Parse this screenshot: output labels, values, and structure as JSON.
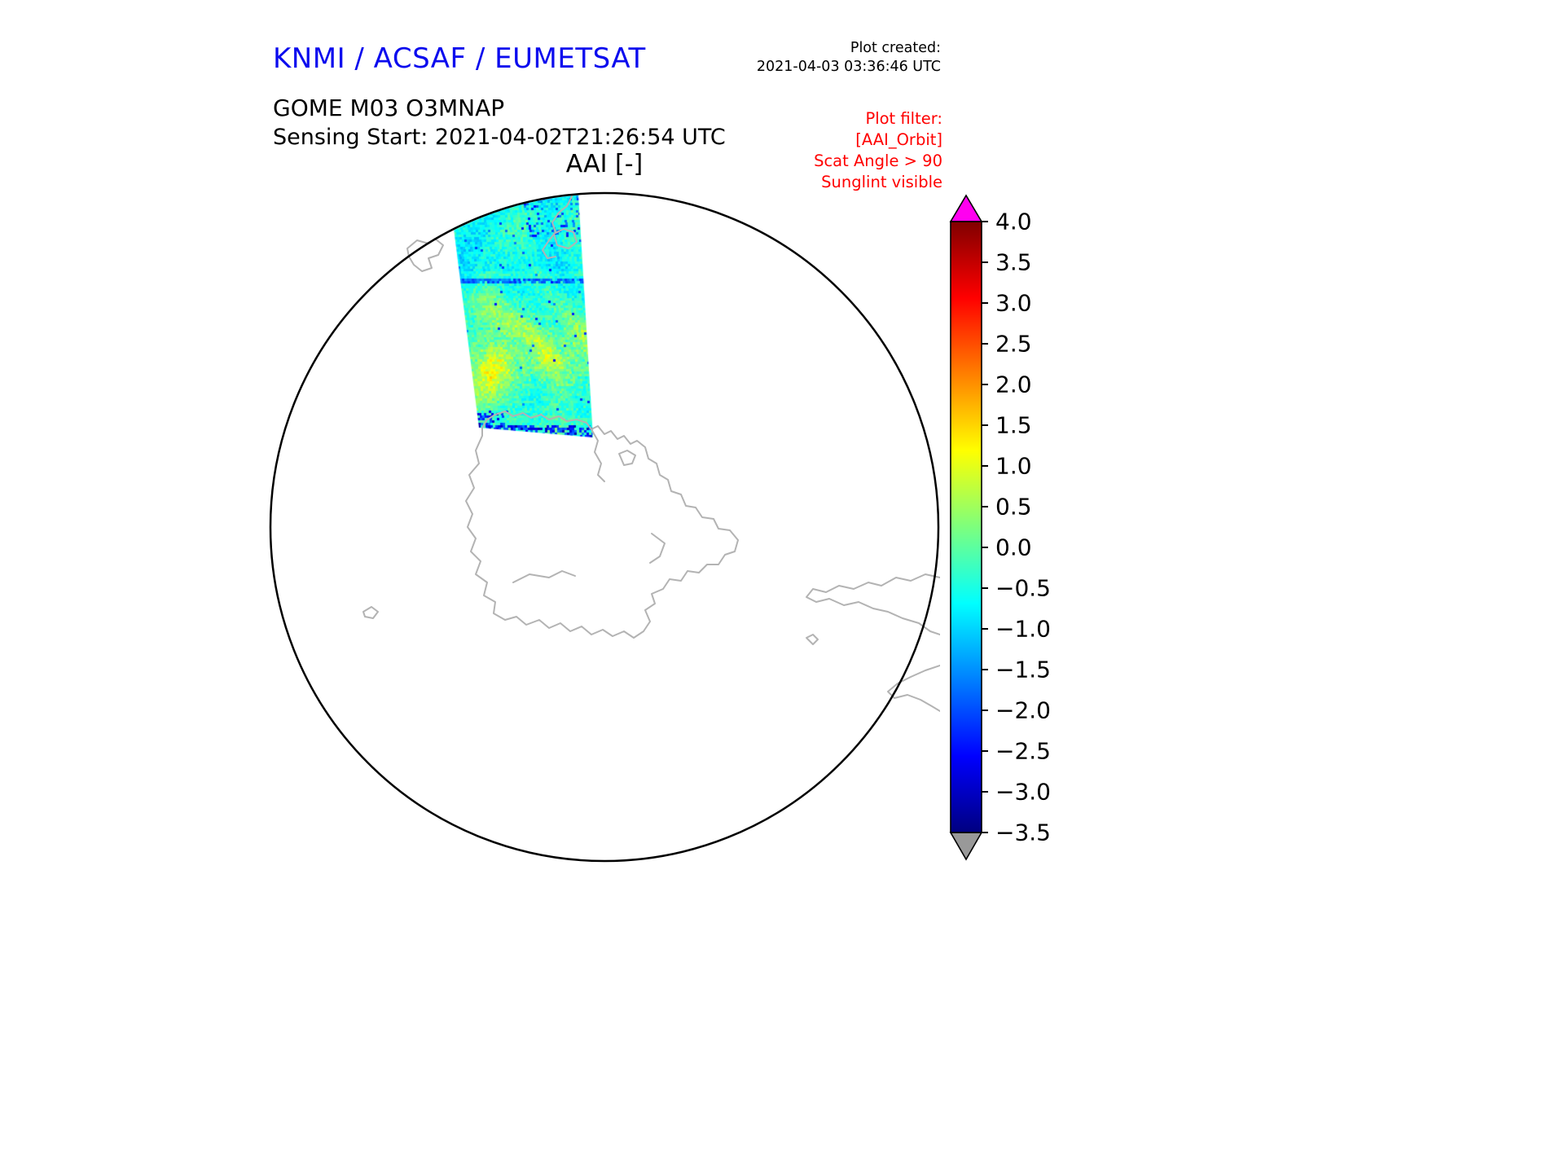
{
  "header": {
    "brand": "KNMI / ACSAF / EUMETSAT",
    "brand_color": "#0b0bee",
    "created_label": "Plot created:",
    "created_value": "2021-04-03 03:36:46 UTC"
  },
  "titles": {
    "product": "GOME M03 O3MNAP",
    "sensing": "Sensing Start: 2021-04-02T21:26:54 UTC",
    "variable": "AAI [-]"
  },
  "filter": {
    "color": "#ff0000",
    "lines": [
      "Plot filter:",
      "[AAI_Orbit]",
      "Scat Angle > 90",
      "Sunglint visible"
    ]
  },
  "chart_data": {
    "type": "heatmap",
    "title": "AAI [-]",
    "subtitle": "GOME M03 O3MNAP, Sensing Start 2021-04-02T21:26:54 UTC",
    "projection": "south polar stereographic",
    "region": "Antarctica / Southern Ocean, coastlines in gray",
    "swath": {
      "description": "Single satellite orbit swath in the Atlantic sector north of the Antarctic Peninsula, speckled field of Absorbing Aerosol Index values",
      "typical_value_range": [
        -1.5,
        1.5
      ],
      "dominant_values_top": -0.7,
      "dominant_values_middle": -0.3,
      "patch_values_lower_middle": 1.2,
      "edge_values_bottom": -2.5
    },
    "colorbar": {
      "label": "AAI [-]",
      "min": -3.5,
      "max": 4.0,
      "tick_step": 0.5,
      "ticks": [
        "4.0",
        "3.5",
        "3.0",
        "2.5",
        "2.0",
        "1.5",
        "1.0",
        "0.5",
        "0.0",
        "−0.5",
        "−1.0",
        "−1.5",
        "−2.0",
        "−2.5",
        "−3.0",
        "−3.5"
      ],
      "tick_values": [
        4.0,
        3.5,
        3.0,
        2.5,
        2.0,
        1.5,
        1.0,
        0.5,
        0.0,
        -0.5,
        -1.0,
        -1.5,
        -2.0,
        -2.5,
        -3.0,
        -3.5
      ],
      "over_arrow_color": "#ff00f0",
      "under_arrow_color": "#999999",
      "colormap_stops": [
        {
          "pos": 0.0,
          "color": "#000080"
        },
        {
          "pos": 0.125,
          "color": "#0000ff"
        },
        {
          "pos": 0.375,
          "color": "#00ffff"
        },
        {
          "pos": 0.5,
          "color": "#7dff7d"
        },
        {
          "pos": 0.625,
          "color": "#ffff00"
        },
        {
          "pos": 0.875,
          "color": "#ff0000"
        },
        {
          "pos": 1.0,
          "color": "#800000"
        }
      ]
    },
    "legend_position": "right vertical colorbar with over/under arrows",
    "grid": false
  }
}
